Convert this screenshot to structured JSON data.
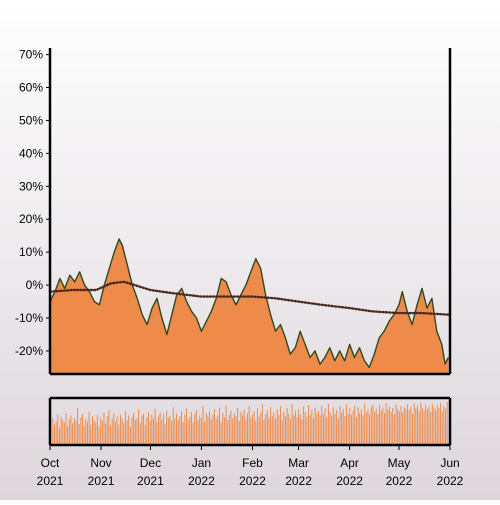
{
  "colors": {
    "area_fill": "#ee8a4a",
    "price_line": "#2f4a1f",
    "moving_average": "#4a2a20",
    "volume_bar": "#ee8a4a",
    "axis": "#000000"
  },
  "chart_data": [
    {
      "type": "area",
      "title": "",
      "xlabel": "",
      "ylabel": "",
      "ylim": [
        -27,
        72
      ],
      "y_tick_labels": [
        "-20%",
        "-10%",
        "0%",
        "10%",
        "20%",
        "30%",
        "40%",
        "50%",
        "60%",
        "70%"
      ],
      "y_tick_values": [
        -20,
        -10,
        0,
        10,
        20,
        30,
        40,
        50,
        60,
        70
      ],
      "x_tick_labels": [
        {
          "month": "Oct",
          "year": "2021",
          "date": "2021-10-01"
        },
        {
          "month": "Nov",
          "year": "2021",
          "date": "2021-11-01"
        },
        {
          "month": "Dec",
          "year": "2021",
          "date": "2021-12-01"
        },
        {
          "month": "Jan",
          "year": "2022",
          "date": "2022-01-01"
        },
        {
          "month": "Feb",
          "year": "2022",
          "date": "2022-02-01"
        },
        {
          "month": "Mar",
          "year": "2022",
          "date": "2022-03-01"
        },
        {
          "month": "Apr",
          "year": "2022",
          "date": "2022-04-01"
        },
        {
          "month": "May",
          "year": "2022",
          "date": "2022-05-01"
        },
        {
          "month": "Jun",
          "year": "2022",
          "date": "2022-06-01"
        }
      ],
      "xlim": [
        "2021-10-01",
        "2022-06-01"
      ],
      "grid": false,
      "legend": "none",
      "series": [
        {
          "style": "filled area with dark line",
          "points": [
            [
              "2021-10-01",
              -5
            ],
            [
              "2021-10-04",
              -2
            ],
            [
              "2021-10-07",
              2
            ],
            [
              "2021-10-10",
              -1
            ],
            [
              "2021-10-13",
              3
            ],
            [
              "2021-10-16",
              1
            ],
            [
              "2021-10-19",
              4
            ],
            [
              "2021-10-22",
              0
            ],
            [
              "2021-10-25",
              -2
            ],
            [
              "2021-10-28",
              -5
            ],
            [
              "2021-10-31",
              -6
            ],
            [
              "2021-11-03",
              0
            ],
            [
              "2021-11-06",
              5
            ],
            [
              "2021-11-09",
              10
            ],
            [
              "2021-11-12",
              14
            ],
            [
              "2021-11-14",
              12
            ],
            [
              "2021-11-17",
              6
            ],
            [
              "2021-11-20",
              0
            ],
            [
              "2021-11-23",
              -4
            ],
            [
              "2021-11-26",
              -9
            ],
            [
              "2021-11-29",
              -12
            ],
            [
              "2021-12-02",
              -7
            ],
            [
              "2021-12-05",
              -4
            ],
            [
              "2021-12-08",
              -10
            ],
            [
              "2021-12-11",
              -15
            ],
            [
              "2021-12-14",
              -9
            ],
            [
              "2021-12-17",
              -3
            ],
            [
              "2021-12-20",
              -1
            ],
            [
              "2021-12-23",
              -5
            ],
            [
              "2021-12-26",
              -8
            ],
            [
              "2021-12-29",
              -10
            ],
            [
              "2022-01-01",
              -14
            ],
            [
              "2022-01-04",
              -11
            ],
            [
              "2022-01-07",
              -8
            ],
            [
              "2022-01-10",
              -4
            ],
            [
              "2022-01-13",
              2
            ],
            [
              "2022-01-16",
              1
            ],
            [
              "2022-01-19",
              -3
            ],
            [
              "2022-01-22",
              -6
            ],
            [
              "2022-01-25",
              -3
            ],
            [
              "2022-01-28",
              0
            ],
            [
              "2022-01-31",
              4
            ],
            [
              "2022-02-03",
              8
            ],
            [
              "2022-02-06",
              5
            ],
            [
              "2022-02-09",
              -3
            ],
            [
              "2022-02-12",
              -9
            ],
            [
              "2022-02-15",
              -14
            ],
            [
              "2022-02-18",
              -12
            ],
            [
              "2022-02-21",
              -16
            ],
            [
              "2022-02-24",
              -21
            ],
            [
              "2022-02-27",
              -19
            ],
            [
              "2022-03-02",
              -14
            ],
            [
              "2022-03-05",
              -18
            ],
            [
              "2022-03-08",
              -22
            ],
            [
              "2022-03-11",
              -20
            ],
            [
              "2022-03-14",
              -24
            ],
            [
              "2022-03-17",
              -22
            ],
            [
              "2022-03-20",
              -19
            ],
            [
              "2022-03-23",
              -23
            ],
            [
              "2022-03-26",
              -20
            ],
            [
              "2022-03-29",
              -23
            ],
            [
              "2022-04-01",
              -18
            ],
            [
              "2022-04-04",
              -22
            ],
            [
              "2022-04-07",
              -19
            ],
            [
              "2022-04-10",
              -23
            ],
            [
              "2022-04-13",
              -25
            ],
            [
              "2022-04-16",
              -21
            ],
            [
              "2022-04-19",
              -16
            ],
            [
              "2022-04-22",
              -14
            ],
            [
              "2022-04-25",
              -11
            ],
            [
              "2022-04-28",
              -9
            ],
            [
              "2022-05-01",
              -6
            ],
            [
              "2022-05-03",
              -2
            ],
            [
              "2022-05-06",
              -8
            ],
            [
              "2022-05-09",
              -12
            ],
            [
              "2022-05-12",
              -6
            ],
            [
              "2022-05-15",
              -1
            ],
            [
              "2022-05-18",
              -7
            ],
            [
              "2022-05-21",
              -4
            ],
            [
              "2022-05-24",
              -14
            ],
            [
              "2022-05-27",
              -18
            ],
            [
              "2022-05-29",
              -24
            ],
            [
              "2022-05-31",
              -22
            ]
          ]
        },
        {
          "style": "dotted moving average",
          "points": [
            [
              "2021-10-01",
              -2
            ],
            [
              "2021-10-15",
              -1.5
            ],
            [
              "2021-10-29",
              -1.5
            ],
            [
              "2021-11-07",
              0.5
            ],
            [
              "2021-11-15",
              1
            ],
            [
              "2021-12-01",
              -1.5
            ],
            [
              "2021-12-15",
              -2.5
            ],
            [
              "2022-01-01",
              -3.5
            ],
            [
              "2022-01-15",
              -3.5
            ],
            [
              "2022-02-01",
              -3.5
            ],
            [
              "2022-02-15",
              -4
            ],
            [
              "2022-03-01",
              -5
            ],
            [
              "2022-03-15",
              -6
            ],
            [
              "2022-04-01",
              -7
            ],
            [
              "2022-04-15",
              -8
            ],
            [
              "2022-05-01",
              -8.5
            ],
            [
              "2022-05-15",
              -8.5
            ],
            [
              "2022-06-01",
              -9
            ]
          ]
        }
      ]
    },
    {
      "type": "bar",
      "title": "",
      "xlim": [
        "2021-10-01",
        "2022-06-01"
      ],
      "grid": false,
      "values": [
        0.62,
        0.48,
        0.55,
        0.71,
        0.4,
        0.66,
        0.58,
        0.52,
        0.74,
        0.45,
        0.6,
        0.69,
        0.51,
        0.63,
        0.57,
        0.86,
        0.49,
        0.65,
        0.72,
        0.44,
        0.61,
        0.54,
        0.78,
        0.47,
        0.67,
        0.59,
        0.53,
        0.7,
        0.42,
        0.64,
        0.56,
        0.75,
        0.5,
        0.68,
        0.81,
        0.46,
        0.62,
        0.73,
        0.55,
        0.66,
        0.48,
        0.71,
        0.6,
        0.52,
        0.79,
        0.57,
        0.69,
        0.43,
        0.65,
        0.74,
        0.58,
        0.62,
        0.83,
        0.51,
        0.68,
        0.72,
        0.47,
        0.64,
        0.77,
        0.55,
        0.7,
        0.61,
        0.84,
        0.53,
        0.66,
        0.75,
        0.59,
        0.71,
        0.49,
        0.8,
        0.63,
        0.68,
        0.56,
        0.88,
        0.62,
        0.73,
        0.58,
        0.67,
        0.79,
        0.54,
        0.7,
        0.85,
        0.6,
        0.65,
        0.76,
        0.52,
        0.72,
        0.81,
        0.57,
        0.69,
        0.63,
        0.9,
        0.55,
        0.74,
        0.66,
        0.78,
        0.59,
        0.71,
        0.83,
        0.61,
        0.68,
        0.87,
        0.53,
        0.75,
        0.64,
        0.92,
        0.58,
        0.7,
        0.8,
        0.62,
        0.73,
        0.67,
        0.86,
        0.56,
        0.77,
        0.69,
        0.82,
        0.6,
        0.74,
        0.91,
        0.63,
        0.71,
        0.79,
        0.57,
        0.85,
        0.66,
        0.76,
        0.94,
        0.59,
        0.72,
        0.81,
        0.64,
        0.88,
        0.68,
        0.75,
        0.62,
        0.83,
        0.7,
        0.9,
        0.58,
        0.78,
        0.67,
        0.86,
        0.73,
        0.61,
        0.95,
        0.69,
        0.8,
        0.65,
        0.84,
        0.72,
        0.6,
        0.89,
        0.76,
        0.66,
        0.93,
        0.7,
        0.82,
        0.63,
        0.87,
        0.74,
        0.79,
        0.68,
        0.91,
        0.71,
        0.85,
        0.64,
        0.96,
        0.77,
        0.69,
        0.88,
        0.73,
        0.81,
        0.62,
        0.9,
        0.75,
        0.84,
        0.67,
        0.94,
        0.72,
        0.86,
        0.7,
        0.8,
        0.92,
        0.65,
        0.88,
        0.74,
        0.83,
        0.69,
        0.97,
        0.76,
        0.82,
        0.71,
        0.89,
        0.95,
        0.78,
        0.85,
        0.73,
        0.93,
        0.8,
        0.87,
        0.75,
        0.98,
        0.82,
        0.9,
        0.77,
        0.86,
        0.72,
        0.94,
        0.84,
        0.79,
        0.91,
        0.76,
        0.88,
        0.83,
        0.95,
        0.81,
        0.89,
        0.74,
        0.97,
        0.85,
        0.92,
        0.78,
        0.99,
        0.87,
        0.8,
        0.94,
        0.83,
        0.9,
        0.76,
        0.96,
        0.88,
        0.81,
        0.93,
        0.86,
        0.98,
        0.79,
        0.91,
        0.84,
        1.0
      ]
    }
  ]
}
